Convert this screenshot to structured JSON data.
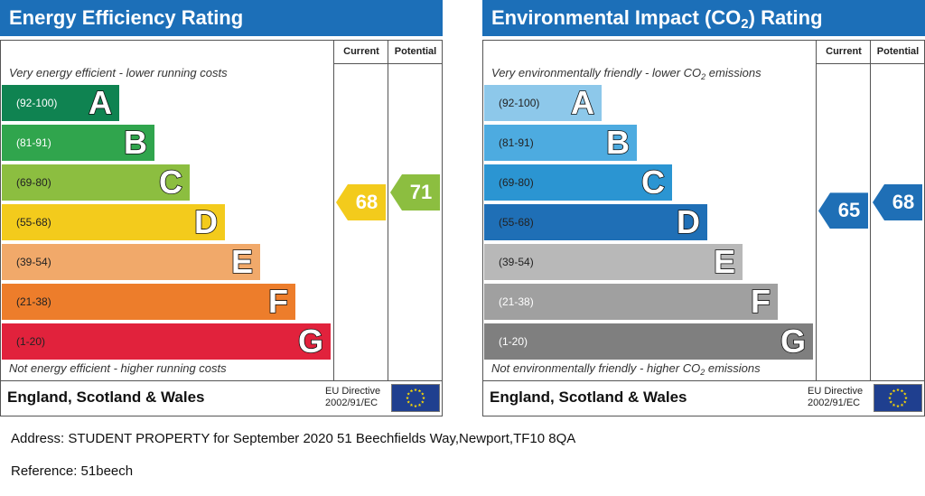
{
  "accent_color": "#1c6fb8",
  "chart_data": [
    {
      "type": "bar",
      "title": "Energy Efficiency Rating",
      "columns": {
        "current": "Current",
        "potential": "Potential"
      },
      "top_note": "Very energy efficient - lower running costs",
      "bottom_note": "Not energy efficient - higher running costs",
      "categories": [
        "A",
        "B",
        "C",
        "D",
        "E",
        "F",
        "G"
      ],
      "ranges": [
        "(92-100)",
        "(81-91)",
        "(69-80)",
        "(55-68)",
        "(39-54)",
        "(21-38)",
        "(1-20)"
      ],
      "band_colors": [
        "#0f8351",
        "#30a54d",
        "#8cbe40",
        "#f3cb1c",
        "#f1a96a",
        "#ed7d2b",
        "#e1223c"
      ],
      "range_text_colors": [
        "#ffffff",
        "#ffffff",
        "#222222",
        "#222222",
        "#222222",
        "#222222",
        "#222222"
      ],
      "current": 68,
      "potential": 71,
      "region": "England, Scotland & Wales",
      "directive": [
        "EU Directive",
        "2002/91/EC"
      ]
    },
    {
      "type": "bar",
      "title": {
        "pre": "Environmental Impact (CO",
        "sub": "2",
        "post": ") Rating"
      },
      "columns": {
        "current": "Current",
        "potential": "Potential"
      },
      "top_note": {
        "pre": "Very environmentally friendly - lower CO",
        "sub": "2",
        "post": " emissions"
      },
      "bottom_note": {
        "pre": "Not environmentally friendly - higher CO",
        "sub": "2",
        "post": " emissions"
      },
      "categories": [
        "A",
        "B",
        "C",
        "D",
        "E",
        "F",
        "G"
      ],
      "ranges": [
        "(92-100)",
        "(81-91)",
        "(69-80)",
        "(55-68)",
        "(39-54)",
        "(21-38)",
        "(1-20)"
      ],
      "band_colors": [
        "#8dc8ea",
        "#4dabe0",
        "#2b95d2",
        "#1f6fb6",
        "#b8b8b8",
        "#a0a0a0",
        "#7f7f7f"
      ],
      "range_text_colors": [
        "#222222",
        "#222222",
        "#222222",
        "#222222",
        "#222222",
        "#ffffff",
        "#ffffff"
      ],
      "current": 65,
      "potential": 68,
      "region": "England, Scotland & Wales",
      "directive": [
        "EU Directive",
        "2002/91/EC"
      ]
    }
  ],
  "address": {
    "label": "Address:",
    "value": "STUDENT PROPERTY for September 2020 51 Beechfields Way,Newport,TF10 8QA"
  },
  "reference": {
    "label": "Reference:",
    "value": "51beech"
  }
}
